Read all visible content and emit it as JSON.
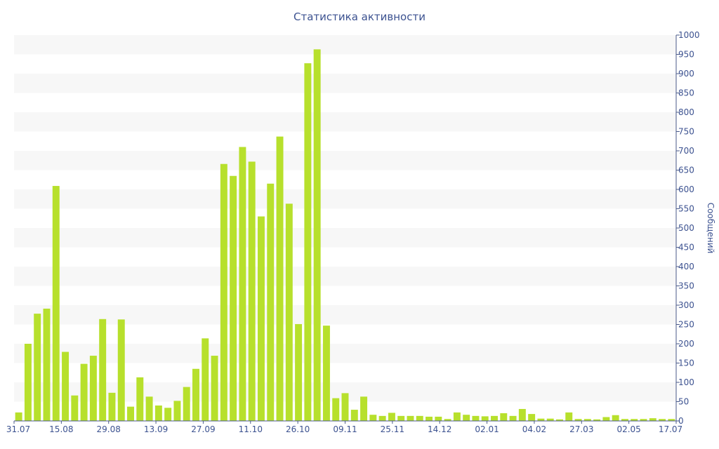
{
  "chart_data": {
    "type": "bar",
    "title": "Статистика активности",
    "ylabel": "Сообщений",
    "ylim": [
      0,
      1000
    ],
    "y_ticks": [
      0,
      50,
      100,
      150,
      200,
      250,
      300,
      350,
      400,
      450,
      500,
      550,
      600,
      650,
      700,
      750,
      800,
      850,
      900,
      950,
      1000
    ],
    "y_axis_position": "right",
    "x_tick_labels": [
      "31.07",
      "15.08",
      "29.08",
      "13.09",
      "27.09",
      "11.10",
      "26.10",
      "09.11",
      "25.11",
      "14.12",
      "02.01",
      "04.02",
      "27.03",
      "02.05",
      "17.07"
    ],
    "background_bands": true,
    "values": [
      22,
      200,
      278,
      291,
      609,
      179,
      66,
      148,
      169,
      264,
      73,
      263,
      37,
      113,
      63,
      40,
      34,
      52,
      88,
      135,
      214,
      169,
      666,
      635,
      710,
      672,
      530,
      615,
      737,
      563,
      251,
      927,
      963,
      247,
      59,
      72,
      29,
      63,
      16,
      13,
      21,
      13,
      13,
      13,
      11,
      11,
      5,
      22,
      16,
      13,
      12,
      13,
      20,
      13,
      31,
      18,
      6,
      6,
      4,
      22,
      5,
      5,
      4,
      10,
      15,
      5,
      5,
      5,
      7,
      5,
      5
    ],
    "colors": {
      "bar": "#b7e02c",
      "text": "#3c5290",
      "band": "#f7f7f7",
      "axis": "#4a5a8a"
    }
  }
}
